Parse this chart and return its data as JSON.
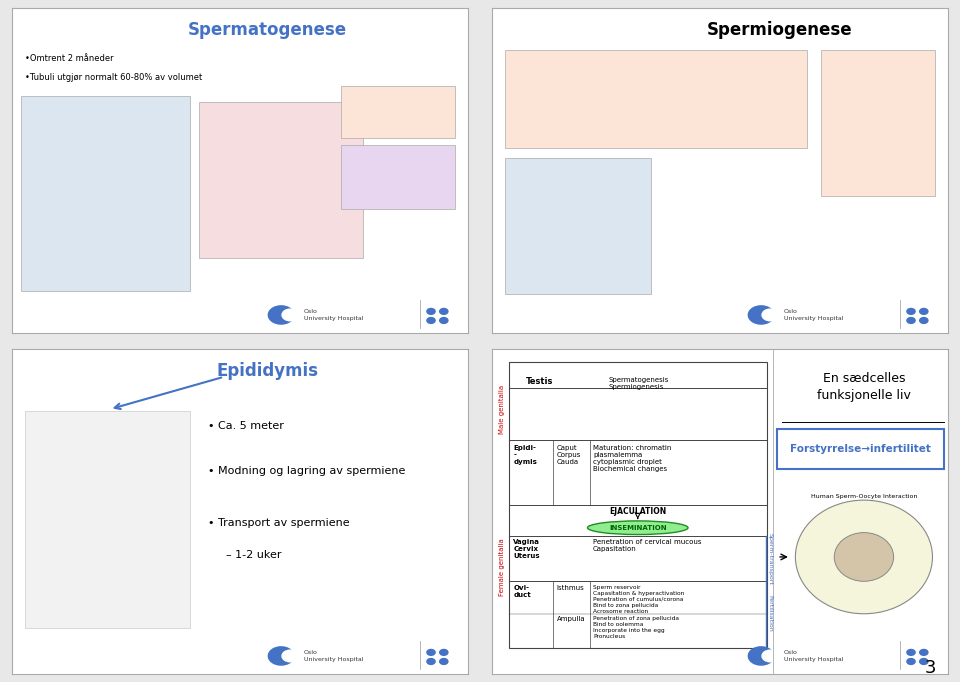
{
  "bg_color": "#e8e8e8",
  "slide_bg": "#ffffff",
  "border_color": "#888888",
  "page_number": "3",
  "slide1": {
    "title": "Spermatogenese",
    "title_color": "#4472c4",
    "bullets": [
      "•Omtrent 2 måneder",
      "•Tubuli utgjør normalt 60-80% av volumet"
    ]
  },
  "slide2": {
    "title": "Spermiogenese",
    "title_color": "#000000"
  },
  "slide3": {
    "title": "Epididymis",
    "title_color": "#4472c4",
    "bullets": [
      "Ca. 5 meter",
      "Modning og lagring av spermiene",
      "Transport av spermiene"
    ],
    "sub_bullet": "– 1-2 uker"
  },
  "slide4": {
    "male_label": "Male genitalia",
    "female_label": "Female genitalia",
    "testis_function": "Spermatogenesis\nSpermiogenesis",
    "epidi_col1": "Epidi-\n-\ndymis",
    "epidi_col2": "Caput\nCorpus\nCauda",
    "epidi_col3": "Maturation: chromatin\nplasmalemma\ncytoplasmic droplet\nBiochemical changes",
    "ejaculation": "EJACULATION",
    "insemination": "INSEMINATION",
    "vagina_organ": "Vagina\nCervix\nUterus",
    "vagina_function": "Penetration of cervical mucous\nCapasitation",
    "oviduct_label": "Ovi-\nduct",
    "isthmus": "Isthmus",
    "ampulla": "Ampulla",
    "oviduct_function": "Sperm reservoir\nCapasitation & hyperactivation\nPenetration of cumulus/corona\nBind to zona pellucida\nAcrosome reaction\nPenetration of zona pellucida\nBind to oolemma\nIncorporate into the egg\nPronucleus",
    "sperm_transport_label": "Sperm-transport",
    "fertilisation_label": "Fertilisation",
    "right_title": "En sædcelles\nfunksjonelle liv",
    "box_text": "Forstyrrelse→infertilitet",
    "box_color": "#4472c4",
    "oocyte_title": "Human Sperm-Oocyte Interaction"
  },
  "oslo_logo_color": "#4472c4",
  "oslo_text": "Oslo\nUniversity Hospital"
}
